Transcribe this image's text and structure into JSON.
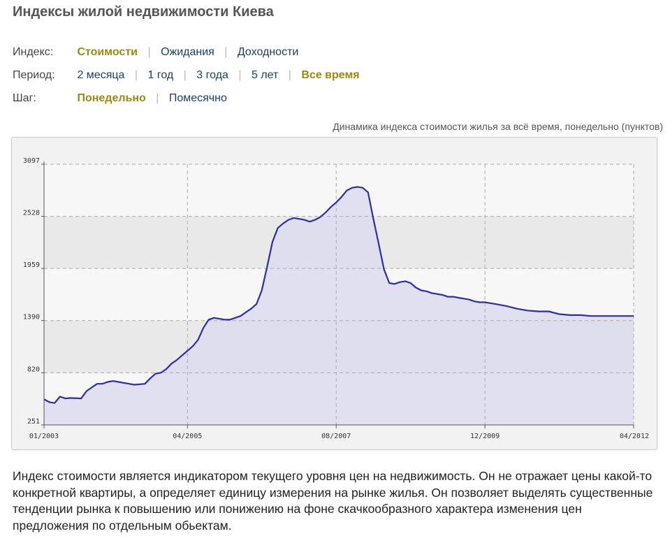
{
  "page": {
    "title": "Индексы жилой недвижимости Киева"
  },
  "filters": {
    "index": {
      "label": "Индекс:",
      "options": [
        {
          "label": "Стоимости",
          "active": true
        },
        {
          "label": "Ожидания",
          "active": false
        },
        {
          "label": "Доходности",
          "active": false
        }
      ]
    },
    "period": {
      "label": "Период:",
      "options": [
        {
          "label": "2 месяца",
          "active": false
        },
        {
          "label": "1 год",
          "active": false
        },
        {
          "label": "3 года",
          "active": false
        },
        {
          "label": "5 лет",
          "active": false
        },
        {
          "label": "Все время",
          "active": true
        }
      ]
    },
    "step": {
      "label": "Шаг:",
      "options": [
        {
          "label": "Понедельно",
          "active": true
        },
        {
          "label": "Помесячно",
          "active": false
        }
      ]
    },
    "separator": "|"
  },
  "chart_caption": "Динамика индекса стоимости жилья за всё время, понедельно (пунктов)",
  "description": "Индекс стоимости является индикатором текущего уровня цен на недвижимость. Он не отражает цены какой-то конкретной квартиры, а определяет единицу измерения на рынке жилья. Он позволяет выделять существенные тенденции рынка к повышению или понижению на фоне скачкообразного характера изменения цен предложения по отдельным обьектам.",
  "colors": {
    "line": "#2d2da8",
    "area": "#dcdcf0",
    "band_light": "#f7f7f7",
    "band_dark": "#e9e9e9",
    "grid": "#aaaaaa",
    "active_option": "#9a8a10",
    "link": "#1b3f6b"
  },
  "chart_data": {
    "type": "area",
    "title": "Динамика индекса стоимости жилья за всё время, понедельно (пунктов)",
    "xlabel": "",
    "ylabel": "",
    "ylim": [
      251,
      3097
    ],
    "yticks": [
      251,
      820,
      1390,
      1959,
      2528,
      3097
    ],
    "xticks": [
      "01/2003",
      "04/2005",
      "08/2007",
      "12/2009",
      "04/2012"
    ],
    "xlim": [
      "2003-01",
      "2012-04"
    ],
    "grid": true,
    "legend": "none",
    "series": [
      {
        "x": [
          "2003-01",
          "2003-02",
          "2003-03",
          "2003-04",
          "2003-05",
          "2003-06",
          "2003-08",
          "2003-09",
          "2003-10",
          "2003-11",
          "2003-12",
          "2004-01",
          "2004-02",
          "2004-03",
          "2004-05",
          "2004-06",
          "2004-08",
          "2004-09",
          "2004-10",
          "2004-11",
          "2004-12",
          "2005-01",
          "2005-02",
          "2005-03",
          "2005-04",
          "2005-05",
          "2005-06",
          "2005-07",
          "2005-08",
          "2005-09",
          "2005-10",
          "2005-11",
          "2005-12",
          "2006-01",
          "2006-02",
          "2006-03",
          "2006-04",
          "2006-05",
          "2006-06",
          "2006-07",
          "2006-08",
          "2006-09",
          "2006-10",
          "2006-11",
          "2006-12",
          "2007-01",
          "2007-02",
          "2007-03",
          "2007-04",
          "2007-05",
          "2007-06",
          "2007-07",
          "2007-08",
          "2007-09",
          "2007-10",
          "2007-11",
          "2007-12",
          "2008-01",
          "2008-02",
          "2008-03",
          "2008-04",
          "2008-05",
          "2008-06",
          "2008-07",
          "2008-08",
          "2008-09",
          "2008-10",
          "2008-11",
          "2008-12",
          "2009-01",
          "2009-02",
          "2009-03",
          "2009-04",
          "2009-05",
          "2009-06",
          "2009-07",
          "2009-08",
          "2009-09",
          "2009-10",
          "2009-11",
          "2009-12",
          "2010-01",
          "2010-02",
          "2010-03",
          "2010-04",
          "2010-06",
          "2010-08",
          "2010-10",
          "2010-12",
          "2011-02",
          "2011-04",
          "2011-06",
          "2011-08",
          "2011-09",
          "2011-10",
          "2011-11",
          "2011-12",
          "2012-02",
          "2012-04"
        ],
        "values": [
          530,
          500,
          490,
          560,
          540,
          545,
          540,
          620,
          660,
          700,
          700,
          720,
          730,
          720,
          700,
          690,
          700,
          760,
          810,
          820,
          860,
          920,
          960,
          1010,
          1060,
          1110,
          1180,
          1310,
          1400,
          1420,
          1410,
          1400,
          1400,
          1420,
          1440,
          1480,
          1520,
          1570,
          1720,
          1980,
          2250,
          2400,
          2450,
          2490,
          2510,
          2500,
          2490,
          2470,
          2490,
          2520,
          2570,
          2630,
          2680,
          2740,
          2810,
          2840,
          2850,
          2840,
          2790,
          2500,
          2230,
          1950,
          1800,
          1790,
          1810,
          1820,
          1800,
          1750,
          1720,
          1710,
          1690,
          1680,
          1670,
          1650,
          1650,
          1640,
          1630,
          1620,
          1600,
          1590,
          1590,
          1580,
          1570,
          1560,
          1550,
          1520,
          1500,
          1490,
          1490,
          1460,
          1450,
          1450,
          1440,
          1440,
          1440,
          1440,
          1440,
          1440,
          1440
        ]
      }
    ]
  }
}
